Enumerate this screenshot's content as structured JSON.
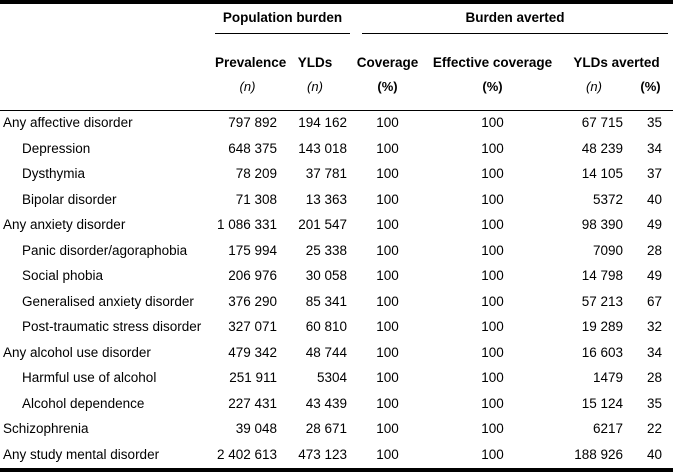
{
  "colors": {
    "background": "#ffffff",
    "text": "#000000",
    "rule": "#000000"
  },
  "table": {
    "header": {
      "groups": [
        {
          "label": "Population burden"
        },
        {
          "label": "Burden averted"
        }
      ],
      "columns": {
        "prevalence": {
          "label": "Prevalence",
          "unit": "(n)"
        },
        "ylds": {
          "label": "YLDs",
          "unit": "(n)"
        },
        "coverage": {
          "label": "Coverage",
          "unit": "(%)"
        },
        "effective_coverage": {
          "label": "Effective coverage",
          "unit": "(%)"
        },
        "ylds_averted": {
          "label": "YLDs averted",
          "unit_n": "(n)",
          "unit_pct": "(%)"
        }
      }
    },
    "rows": [
      {
        "label": "Any affective disorder",
        "indent": false,
        "prevalence": "797 892",
        "ylds": "194 162",
        "coverage": "100",
        "effective_coverage": "100",
        "ylds_averted_n": "67 715",
        "ylds_averted_pct": "35"
      },
      {
        "label": "Depression",
        "indent": true,
        "prevalence": "648 375",
        "ylds": "143 018",
        "coverage": "100",
        "effective_coverage": "100",
        "ylds_averted_n": "48 239",
        "ylds_averted_pct": "34"
      },
      {
        "label": "Dysthymia",
        "indent": true,
        "prevalence": "78 209",
        "ylds": "37 781",
        "coverage": "100",
        "effective_coverage": "100",
        "ylds_averted_n": "14 105",
        "ylds_averted_pct": "37"
      },
      {
        "label": "Bipolar disorder",
        "indent": true,
        "prevalence": "71 308",
        "ylds": "13 363",
        "coverage": "100",
        "effective_coverage": "100",
        "ylds_averted_n": "5372",
        "ylds_averted_pct": "40"
      },
      {
        "label": "Any anxiety disorder",
        "indent": false,
        "prevalence": "1 086 331",
        "ylds": "201 547",
        "coverage": "100",
        "effective_coverage": "100",
        "ylds_averted_n": "98 390",
        "ylds_averted_pct": "49"
      },
      {
        "label": "Panic disorder/agoraphobia",
        "indent": true,
        "prevalence": "175 994",
        "ylds": "25 338",
        "coverage": "100",
        "effective_coverage": "100",
        "ylds_averted_n": "7090",
        "ylds_averted_pct": "28"
      },
      {
        "label": "Social phobia",
        "indent": true,
        "prevalence": "206 976",
        "ylds": "30 058",
        "coverage": "100",
        "effective_coverage": "100",
        "ylds_averted_n": "14 798",
        "ylds_averted_pct": "49"
      },
      {
        "label": "Generalised anxiety disorder",
        "indent": true,
        "prevalence": "376 290",
        "ylds": "85 341",
        "coverage": "100",
        "effective_coverage": "100",
        "ylds_averted_n": "57 213",
        "ylds_averted_pct": "67"
      },
      {
        "label": "Post-traumatic stress disorder",
        "indent": true,
        "prevalence": "327 071",
        "ylds": "60 810",
        "coverage": "100",
        "effective_coverage": "100",
        "ylds_averted_n": "19 289",
        "ylds_averted_pct": "32"
      },
      {
        "label": "Any alcohol use disorder",
        "indent": false,
        "prevalence": "479 342",
        "ylds": "48 744",
        "coverage": "100",
        "effective_coverage": "100",
        "ylds_averted_n": "16 603",
        "ylds_averted_pct": "34"
      },
      {
        "label": "Harmful use of alcohol",
        "indent": true,
        "prevalence": "251 911",
        "ylds": "5304",
        "coverage": "100",
        "effective_coverage": "100",
        "ylds_averted_n": "1479",
        "ylds_averted_pct": "28"
      },
      {
        "label": "Alcohol dependence",
        "indent": true,
        "prevalence": "227 431",
        "ylds": "43 439",
        "coverage": "100",
        "effective_coverage": "100",
        "ylds_averted_n": "15 124",
        "ylds_averted_pct": "35"
      },
      {
        "label": "Schizophrenia",
        "indent": false,
        "prevalence": "39 048",
        "ylds": "28 671",
        "coverage": "100",
        "effective_coverage": "100",
        "ylds_averted_n": "6217",
        "ylds_averted_pct": "22"
      },
      {
        "label": "Any study mental disorder",
        "indent": false,
        "prevalence": "2 402 613",
        "ylds": "473 123",
        "coverage": "100",
        "effective_coverage": "100",
        "ylds_averted_n": "188 926",
        "ylds_averted_pct": "40"
      }
    ]
  }
}
